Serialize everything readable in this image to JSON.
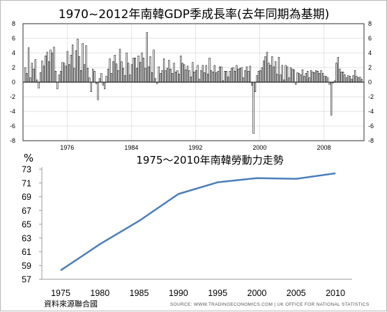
{
  "chart_data": [
    {
      "type": "bar",
      "title": "1970~2012年南韓GDP季成長率(去年同期為基期)",
      "ylim": [
        -8,
        8
      ],
      "yticks": [
        -8,
        -6,
        -4,
        -2,
        0,
        2,
        4,
        6,
        8
      ],
      "xticks": [
        "1976",
        "1984",
        "1992",
        "2000",
        "2008"
      ],
      "x_start": 1970.5,
      "x_end": 2013.0,
      "grid": true,
      "bar_color": "#ffffff",
      "bar_edge": "#000000",
      "values": [
        2.0,
        1.2,
        4.7,
        0.6,
        2.6,
        1.8,
        3.1,
        0.3,
        -0.8,
        1.3,
        2.9,
        2.2,
        3.6,
        4.1,
        2.8,
        4.4,
        4.0,
        4.8,
        1.5,
        -0.9,
        1.0,
        1.5,
        2.7,
        2.6,
        2.2,
        4.2,
        2.4,
        3.7,
        5.1,
        1.9,
        4.3,
        5.9,
        3.5,
        1.6,
        5.3,
        2.4,
        5.0,
        1.9,
        0.6,
        -1.3,
        1.8,
        1.5,
        -0.2,
        -2.4,
        0.5,
        1.2,
        -0.4,
        -0.9,
        0.8,
        1.8,
        3.2,
        1.2,
        2.8,
        3.7,
        2.5,
        1.6,
        4.5,
        2.8,
        1.9,
        0.9,
        4.0,
        2.6,
        1.0,
        2.4,
        3.3,
        3.3,
        1.9,
        3.6,
        2.7,
        4.0,
        3.3,
        1.9,
        6.8,
        2.1,
        3.5,
        1.3,
        4.4,
        0.5,
        -0.2,
        2.1,
        1.2,
        1.6,
        3.2,
        1.6,
        1.9,
        3.0,
        1.8,
        1.2,
        2.6,
        1.4,
        1.6,
        1.1,
        3.6,
        2.6,
        2.4,
        1.7,
        2.2,
        1.6,
        0.7,
        2.7,
        1.4,
        1.6,
        2.3,
        0.4,
        1.6,
        2.3,
        1.3,
        2.3,
        1.1,
        3.3,
        1.6,
        1.4,
        2.3,
        1.3,
        1.5,
        2.1,
        2.1,
        0.2,
        1.5,
        1.5,
        0.7,
        1.5,
        1.9,
        2.0,
        1.5,
        2.3,
        1.8,
        1.9,
        2.0,
        0.6,
        1.6,
        2.1,
        1.5,
        2.2,
        -0.4,
        -7.0,
        -1.3,
        0.9,
        1.5,
        1.6,
        2.0,
        2.9,
        3.5,
        4.1,
        2.6,
        2.3,
        3.5,
        2.1,
        2.8,
        1.1,
        3.4,
        1.0,
        2.3,
        0.3,
        2.3,
        2.1,
        0.6,
        2.0,
        1.8,
        1.7,
        -0.3,
        1.3,
        1.2,
        1.0,
        1.7,
        0.8,
        1.2,
        1.5,
        0.6,
        1.6,
        1.4,
        1.3,
        1.6,
        1.5,
        1.2,
        1.6,
        1.2,
        0.8,
        0.8,
        0.6,
        -0.3,
        -4.5,
        -0.1,
        0.2,
        2.6,
        3.4,
        1.8,
        1.4,
        1.4,
        1.0,
        0.6,
        0.9,
        0.8,
        0.4,
        0.9,
        1.6,
        0.8,
        0.6,
        0.7,
        0.4
      ]
    },
    {
      "type": "line",
      "title": "1975～2010年南韓勞動力走勢",
      "ylabel": "%",
      "x": [
        "1975",
        "1980",
        "1985",
        "1990",
        "1995",
        "2000",
        "2005",
        "2010"
      ],
      "values": [
        58.3,
        62.1,
        65.5,
        69.4,
        71.1,
        71.7,
        71.6,
        72.4
      ],
      "ylim": [
        57,
        73
      ],
      "yticks": [
        57,
        59,
        61,
        63,
        65,
        67,
        69,
        71,
        73
      ],
      "grid": false,
      "line_color": "#4a7ebb"
    }
  ],
  "source_left": "資料來源聯合國",
  "source_right": "SOURCE: WWW.TRADINGECONOMICS.COM  |  UK OFFICE FOR NATIONAL STATISTICS"
}
